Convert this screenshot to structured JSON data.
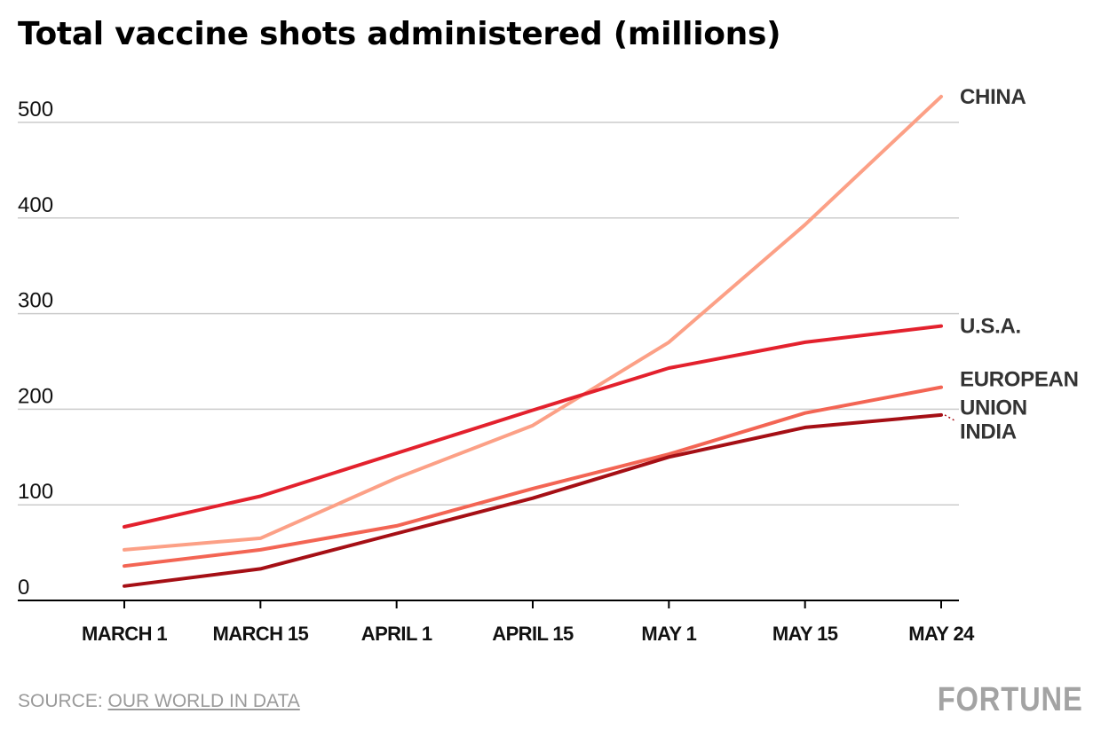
{
  "title": "Total vaccine shots administered (millions)",
  "source": {
    "label": "SOURCE:",
    "link_text": "OUR WORLD IN DATA"
  },
  "brand": "FORTUNE",
  "colors": {
    "gridline": "#cccccc",
    "axis": "#000000",
    "label_text": "#333333",
    "source_text": "#9a9a9a"
  },
  "chart_data": {
    "type": "line",
    "categories": [
      "MARCH 1",
      "MARCH 15",
      "APRIL 1",
      "APRIL 15",
      "MAY 1",
      "MAY 15",
      "MAY 24"
    ],
    "ylim": [
      0,
      500
    ],
    "yticks": [
      0,
      100,
      200,
      300,
      400,
      500
    ],
    "grid": true,
    "legend": "direct labels at line ends (right)",
    "series": [
      {
        "name": "CHINA",
        "label_lines": [
          "CHINA"
        ],
        "color": "#fca086",
        "values": [
          53,
          65,
          128,
          183,
          270,
          393,
          527
        ]
      },
      {
        "name": "U.S.A.",
        "label_lines": [
          "U.S.A."
        ],
        "color": "#e3212d",
        "values": [
          77,
          109,
          154,
          199,
          243,
          270,
          287
        ]
      },
      {
        "name": "EUROPEAN UNION",
        "label_lines": [
          "EUROPEAN",
          "UNION"
        ],
        "color": "#f36554",
        "values": [
          36,
          53,
          78,
          117,
          153,
          196,
          223
        ]
      },
      {
        "name": "INDIA",
        "label_lines": [
          "INDIA"
        ],
        "color": "#a50f15",
        "values": [
          15,
          33,
          70,
          107,
          150,
          181,
          194
        ]
      }
    ]
  }
}
